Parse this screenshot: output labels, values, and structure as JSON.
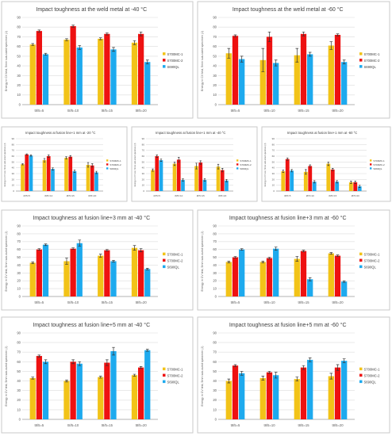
{
  "colors": {
    "S700MC-1": "#f2c318",
    "S700MC-2": "#ee1111",
    "S690QL": "#1eaaee"
  },
  "chart_data": [
    {
      "type": "bar",
      "title": "Impact toughness at the weld metal at -40 °C",
      "ylabel": "Energy in CV test, 5mm sub-sized specimen (J)",
      "ylim": [
        0,
        90
      ],
      "yticks": [
        0,
        10,
        20,
        30,
        40,
        50,
        60,
        70,
        80,
        90
      ],
      "categories": [
        "t8/5=5",
        "t8/5=10",
        "t8/5=15",
        "t8/5=20"
      ],
      "legend_position": "right",
      "grid": true,
      "series": [
        {
          "name": "S700MC-1",
          "values": [
            62,
            67,
            68,
            64
          ],
          "errors": [
            1,
            1,
            1,
            2
          ]
        },
        {
          "name": "S700MC-2",
          "values": [
            76,
            81,
            73,
            73
          ],
          "errors": [
            1,
            1,
            1,
            2
          ]
        },
        {
          "name": "S690QL",
          "values": [
            52,
            59,
            57,
            44
          ],
          "errors": [
            1,
            2,
            2,
            2
          ]
        }
      ]
    },
    {
      "type": "bar",
      "title": "Impact toughness at the weld metal at -60 °C",
      "ylabel": "Energy in CV test, 5mm sub-sized specimen (J)",
      "ylim": [
        0,
        90
      ],
      "yticks": [
        0,
        10,
        20,
        30,
        40,
        50,
        60,
        70,
        80,
        90
      ],
      "categories": [
        "t8/5=5",
        "t8/5=10",
        "t8/5=15",
        "t8/5=20"
      ],
      "legend_position": "right",
      "grid": true,
      "series": [
        {
          "name": "S700MC-1",
          "values": [
            53,
            46,
            51,
            61
          ],
          "errors": [
            5,
            12,
            7,
            4
          ]
        },
        {
          "name": "S700MC-2",
          "values": [
            71,
            70,
            73,
            72
          ],
          "errors": [
            1,
            5,
            2,
            1
          ]
        },
        {
          "name": "S690QL",
          "values": [
            47,
            43,
            52,
            44
          ],
          "errors": [
            3,
            3,
            2,
            2
          ]
        }
      ]
    },
    {
      "type": "bar",
      "title": "Impact toughness at fusion line+1 mm at -20 °C",
      "ylabel": "Energy in CV test, 5mm sub-sized specimen (J)",
      "ylim": [
        0,
        90
      ],
      "yticks": [
        0,
        10,
        20,
        30,
        40,
        50,
        60,
        70,
        80,
        90
      ],
      "categories": [
        "t8/5=5",
        "t8/5=10",
        "t8/5=15",
        "t8/5=20"
      ],
      "legend_position": "right",
      "grid": true,
      "series": [
        {
          "name": "S700MC-1",
          "values": [
            46,
            53,
            57,
            45
          ],
          "errors": [
            1,
            3,
            2,
            4
          ]
        },
        {
          "name": "S700MC-2",
          "values": [
            63,
            60,
            59,
            44
          ],
          "errors": [
            1,
            2,
            2,
            3
          ]
        },
        {
          "name": "S690QL",
          "values": [
            61,
            38,
            34,
            32
          ],
          "errors": [
            1,
            2,
            2,
            2
          ]
        }
      ]
    },
    {
      "type": "bar",
      "title": "Impact toughness at fusion line+1 mm at -40 °C",
      "ylabel": "Energy in CV test, 5mm sub-sized specimen (J)",
      "ylim": [
        0,
        90
      ],
      "yticks": [
        0,
        10,
        20,
        30,
        40,
        50,
        60,
        70,
        80,
        90
      ],
      "categories": [
        "t8/5=5",
        "t8/5=10",
        "t8/5=15",
        "t8/5=20"
      ],
      "legend_position": "right",
      "grid": true,
      "series": [
        {
          "name": "S700MC-1",
          "values": [
            36,
            47,
            43,
            42
          ],
          "errors": [
            2,
            3,
            5,
            4
          ]
        },
        {
          "name": "S700MC-2",
          "values": [
            60,
            54,
            49,
            36
          ],
          "errors": [
            2,
            4,
            3,
            3
          ]
        },
        {
          "name": "S690QL",
          "values": [
            53,
            19,
            19,
            18
          ],
          "errors": [
            2,
            2,
            2,
            2
          ]
        }
      ]
    },
    {
      "type": "bar",
      "title": "Impact toughness at fusion line+1 mm at -60 °C",
      "ylabel": "Energy in CV test, 5mm sub-sized specimen (J)",
      "ylim": [
        0,
        90
      ],
      "yticks": [
        0,
        10,
        20,
        30,
        40,
        50,
        60,
        70,
        80,
        90
      ],
      "categories": [
        "t8/5=5",
        "t8/5=10",
        "t8/5=15",
        "t8/5=20"
      ],
      "legend_position": "right",
      "grid": true,
      "series": [
        {
          "name": "S700MC-1",
          "values": [
            34,
            33,
            47,
            15
          ],
          "errors": [
            2,
            4,
            3,
            2
          ]
        },
        {
          "name": "S700MC-2",
          "values": [
            55,
            43,
            37,
            15
          ],
          "errors": [
            2,
            2,
            2,
            2
          ]
        },
        {
          "name": "S690QL",
          "values": [
            35,
            16,
            16,
            8
          ],
          "errors": [
            2,
            2,
            2,
            2
          ]
        }
      ]
    },
    {
      "type": "bar",
      "title": "Impact toughness at fusion line+3 mm at -40 °C",
      "ylabel": "Energy in CV test, 5mm sub-sized specimen (J)",
      "ylim": [
        0,
        90
      ],
      "yticks": [
        0,
        10,
        20,
        30,
        40,
        50,
        60,
        70,
        80,
        90
      ],
      "categories": [
        "t8/5=5",
        "t8/5=10",
        "t8/5=15",
        "t8/5=20"
      ],
      "legend_position": "right",
      "grid": true,
      "series": [
        {
          "name": "S700MC-1",
          "values": [
            43,
            45,
            52,
            62
          ],
          "errors": [
            1,
            4,
            2,
            3
          ]
        },
        {
          "name": "S700MC-2",
          "values": [
            60,
            61,
            59,
            59
          ],
          "errors": [
            1,
            1,
            1,
            2
          ]
        },
        {
          "name": "S690QL",
          "values": [
            66,
            68,
            45,
            35
          ],
          "errors": [
            1,
            4,
            1,
            1
          ]
        }
      ]
    },
    {
      "type": "bar",
      "title": "Impact toughness at fusion line+3 mm at -60 °C",
      "ylabel": "Energy in CV test, 5mm sub-sized specimen (J)",
      "ylim": [
        0,
        90
      ],
      "yticks": [
        0,
        10,
        20,
        30,
        40,
        50,
        60,
        70,
        80,
        90
      ],
      "categories": [
        "t8/5=5",
        "t8/5=10",
        "t8/5=15",
        "t8/5=20"
      ],
      "legend_position": "right",
      "grid": true,
      "series": [
        {
          "name": "S700MC-1",
          "values": [
            44,
            44,
            48,
            55
          ],
          "errors": [
            1,
            1,
            3,
            1
          ]
        },
        {
          "name": "S700MC-2",
          "values": [
            50,
            49,
            58,
            52
          ],
          "errors": [
            1,
            1,
            1,
            1
          ]
        },
        {
          "name": "S690QL",
          "values": [
            60,
            61,
            22,
            19
          ],
          "errors": [
            1,
            2,
            2,
            1
          ]
        }
      ]
    },
    {
      "type": "bar",
      "title": "Impact toughness at fusion line+5 mm at -40 °C",
      "ylabel": "Energy in CV test, 5mm sub-sized specimen (J)",
      "ylim": [
        0,
        90
      ],
      "yticks": [
        0,
        10,
        20,
        30,
        40,
        50,
        60,
        70,
        80,
        90
      ],
      "categories": [
        "t8/5=5",
        "t8/5=10",
        "t8/5=15",
        "t8/5=20"
      ],
      "legend_position": "right",
      "grid": true,
      "series": [
        {
          "name": "S700MC-1",
          "values": [
            43,
            40,
            44,
            46
          ],
          "errors": [
            1,
            1,
            1,
            1
          ]
        },
        {
          "name": "S700MC-2",
          "values": [
            66,
            60,
            59,
            54
          ],
          "errors": [
            1,
            2,
            3,
            1
          ]
        },
        {
          "name": "S690QL",
          "values": [
            60,
            58,
            71,
            72
          ],
          "errors": [
            2,
            2,
            4,
            1
          ]
        }
      ]
    },
    {
      "type": "bar",
      "title": "Impact toughness at fusion line+5 mm at -60 °C",
      "ylabel": "Energy in CV test, 5mm sub-sized specimen (J)",
      "ylim": [
        0,
        90
      ],
      "yticks": [
        0,
        10,
        20,
        30,
        40,
        50,
        60,
        70,
        80,
        90
      ],
      "categories": [
        "t8/5=5",
        "t8/5=10",
        "t8/5=15",
        "t8/5=20"
      ],
      "legend_position": "right",
      "grid": true,
      "series": [
        {
          "name": "S700MC-1",
          "values": [
            40,
            43,
            42,
            45
          ],
          "errors": [
            2,
            2,
            2,
            3
          ]
        },
        {
          "name": "S700MC-2",
          "values": [
            56,
            49,
            54,
            54
          ],
          "errors": [
            1,
            1,
            2,
            3
          ]
        },
        {
          "name": "S690QL",
          "values": [
            48,
            46,
            62,
            61
          ],
          "errors": [
            2,
            3,
            2,
            2
          ]
        }
      ]
    }
  ]
}
